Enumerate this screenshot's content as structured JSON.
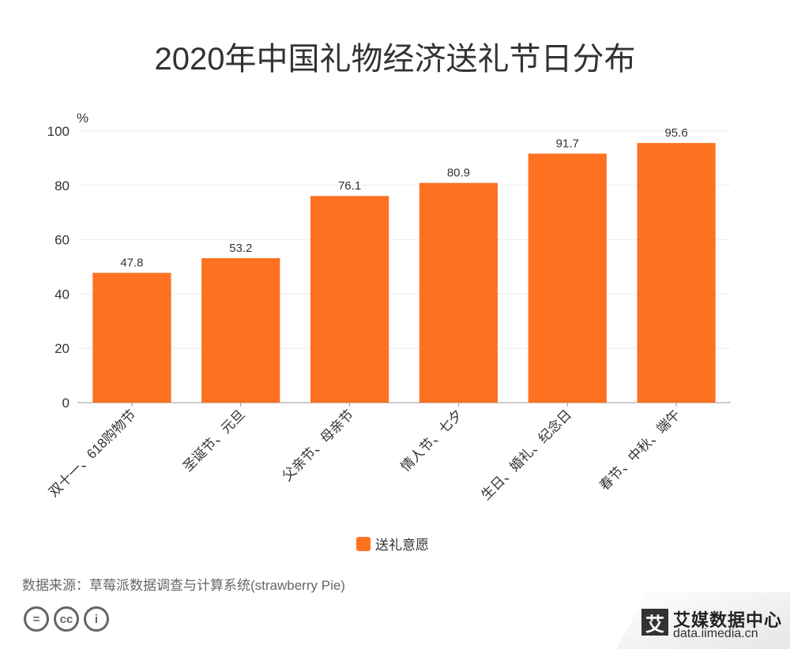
{
  "title": "2020年中国礼物经济送礼节日分布",
  "chart_data": {
    "type": "bar",
    "title": "2020年中国礼物经济送礼节日分布",
    "ylabel": "%",
    "xlabel": "",
    "ylim": [
      0,
      100
    ],
    "yticks": [
      0,
      20,
      40,
      60,
      80,
      100
    ],
    "categories": [
      "双十一、618购物节",
      "圣诞节、元旦",
      "父亲节、母亲节",
      "情人节、七夕",
      "生日、婚礼、纪念日",
      "春节、中秋、端午"
    ],
    "series": [
      {
        "name": "送礼意愿",
        "values": [
          47.8,
          53.2,
          76.1,
          80.9,
          91.7,
          95.6
        ],
        "color": "#FD7120"
      }
    ],
    "grid": true,
    "legend_position": "bottom"
  },
  "source": "数据来源：草莓派数据调查与计算系统(strawberry Pie)",
  "brand": {
    "logo_char": "艾",
    "name": "艾媒数据中心",
    "url": "data.iimedia.cn"
  },
  "license_icons": [
    "equals-icon",
    "cc-icon",
    "person-icon"
  ],
  "license_glyphs": [
    "=",
    "cc",
    "i"
  ]
}
